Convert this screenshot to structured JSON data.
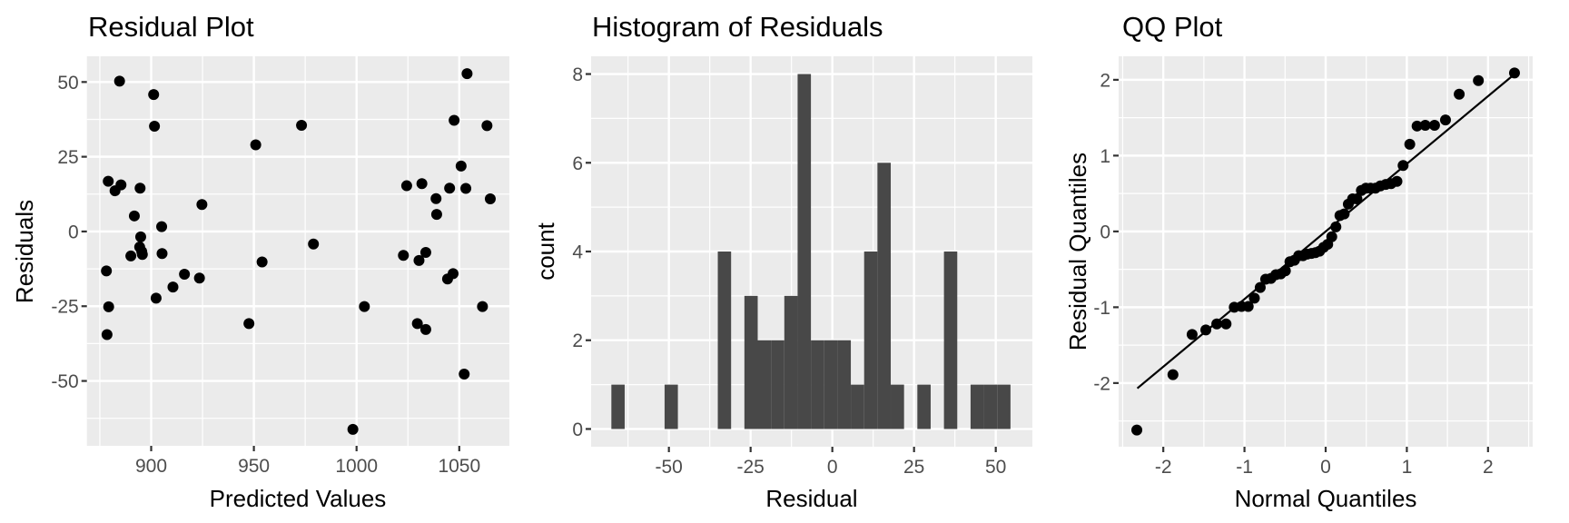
{
  "chart_data": [
    {
      "type": "scatter",
      "title": "Residual Plot",
      "xlabel": "Predicted Values",
      "ylabel": "Residuals",
      "xlim": [
        868.7,
        1074.4
      ],
      "ylim": [
        -71.7,
        58.6
      ],
      "x_ticks": [
        900,
        950,
        1000,
        1050
      ],
      "x_tick_labels": [
        "900",
        "950",
        "1000",
        "1050"
      ],
      "y_ticks": [
        -50,
        -25,
        0,
        25,
        50
      ],
      "y_tick_labels": [
        "-50",
        "-25",
        "0",
        "25",
        "50"
      ],
      "grid": true,
      "points": [
        {
          "x": 884.6,
          "y": 50.3
        },
        {
          "x": 901.2,
          "y": 45.8
        },
        {
          "x": 901.6,
          "y": 35.2
        },
        {
          "x": 950.9,
          "y": 29.0
        },
        {
          "x": 973.2,
          "y": 35.5
        },
        {
          "x": 879.1,
          "y": 16.8
        },
        {
          "x": 885.3,
          "y": 15.6
        },
        {
          "x": 882.4,
          "y": 13.6
        },
        {
          "x": 894.6,
          "y": 14.5
        },
        {
          "x": 891.8,
          "y": 5.2
        },
        {
          "x": 924.7,
          "y": 9.0
        },
        {
          "x": 905.1,
          "y": 1.6
        },
        {
          "x": 894.9,
          "y": -1.8
        },
        {
          "x": 894.4,
          "y": -5.2
        },
        {
          "x": 895.4,
          "y": -6.7
        },
        {
          "x": 895.7,
          "y": -7.7
        },
        {
          "x": 890.1,
          "y": -8.2
        },
        {
          "x": 905.3,
          "y": -7.4
        },
        {
          "x": 878.2,
          "y": -13.2
        },
        {
          "x": 879.3,
          "y": -25.2
        },
        {
          "x": 878.5,
          "y": -34.5
        },
        {
          "x": 902.4,
          "y": -22.3
        },
        {
          "x": 910.6,
          "y": -18.6
        },
        {
          "x": 916.2,
          "y": -14.3
        },
        {
          "x": 923.5,
          "y": -15.6
        },
        {
          "x": 947.6,
          "y": -30.8
        },
        {
          "x": 954.0,
          "y": -10.2
        },
        {
          "x": 979.0,
          "y": -4.2
        },
        {
          "x": 1003.8,
          "y": -25.1
        },
        {
          "x": 998.2,
          "y": -66.2
        },
        {
          "x": 1024.4,
          "y": 15.3
        },
        {
          "x": 1031.8,
          "y": 16.0
        },
        {
          "x": 1038.7,
          "y": 11.0
        },
        {
          "x": 1039.0,
          "y": 5.7
        },
        {
          "x": 1045.3,
          "y": 14.5
        },
        {
          "x": 1047.5,
          "y": 37.2
        },
        {
          "x": 1050.9,
          "y": 21.9
        },
        {
          "x": 1053.2,
          "y": 14.4
        },
        {
          "x": 1053.8,
          "y": 52.8
        },
        {
          "x": 1022.8,
          "y": -8.0
        },
        {
          "x": 1030.4,
          "y": -9.7
        },
        {
          "x": 1033.7,
          "y": -7.0
        },
        {
          "x": 1044.3,
          "y": -15.9
        },
        {
          "x": 1047.0,
          "y": -14.1
        },
        {
          "x": 1029.6,
          "y": -30.8
        },
        {
          "x": 1033.7,
          "y": -32.8
        },
        {
          "x": 1052.4,
          "y": -47.7
        },
        {
          "x": 1063.5,
          "y": 35.4
        },
        {
          "x": 1065.1,
          "y": 10.9
        },
        {
          "x": 1061.3,
          "y": -25.1
        }
      ]
    },
    {
      "type": "bar",
      "subtype": "histogram",
      "title": "Histogram of Residuals",
      "xlabel": "Residual",
      "ylabel": "count",
      "xlim": [
        -73.8,
        61.2
      ],
      "ylim": [
        -0.4,
        8.4
      ],
      "x_ticks": [
        -50,
        -25,
        0,
        25,
        50
      ],
      "x_tick_labels": [
        "-50",
        "-25",
        "0",
        "25",
        "50"
      ],
      "y_ticks": [
        0,
        2,
        4,
        6,
        8
      ],
      "y_tick_labels": [
        "0",
        "2",
        "4",
        "6",
        "8"
      ],
      "grid": true,
      "bin_width": 4.07,
      "first_bin_start": -67.6,
      "counts": [
        1,
        0,
        0,
        0,
        1,
        0,
        0,
        0,
        4,
        0,
        3,
        2,
        2,
        3,
        8,
        2,
        2,
        2,
        1,
        4,
        6,
        1,
        0,
        1,
        0,
        4,
        0,
        1,
        1,
        1
      ],
      "bar_color": "#484848"
    },
    {
      "type": "scatter",
      "subtype": "qq",
      "title": "QQ Plot",
      "xlabel": "Normal Quantiles",
      "ylabel": "Residual Quantiles",
      "xlim": [
        -2.55,
        2.55
      ],
      "ylim": [
        -2.84,
        2.31
      ],
      "x_ticks": [
        -2,
        -1,
        0,
        1,
        2
      ],
      "x_tick_labels": [
        "-2",
        "-1",
        "0",
        "1",
        "2"
      ],
      "y_ticks": [
        -2,
        -1,
        0,
        1,
        2
      ],
      "y_tick_labels": [
        "-2",
        "-1",
        "0",
        "1",
        "2"
      ],
      "grid": true,
      "x": [
        -2.326,
        -1.881,
        -1.645,
        -1.476,
        -1.341,
        -1.227,
        -1.126,
        -1.036,
        -0.954,
        -0.878,
        -0.806,
        -0.739,
        -0.674,
        -0.613,
        -0.553,
        -0.496,
        -0.44,
        -0.385,
        -0.332,
        -0.279,
        -0.228,
        -0.176,
        -0.126,
        -0.075,
        -0.025,
        0.025,
        0.075,
        0.126,
        0.176,
        0.228,
        0.279,
        0.332,
        0.385,
        0.44,
        0.496,
        0.553,
        0.613,
        0.674,
        0.739,
        0.806,
        0.878,
        0.954,
        1.036,
        1.126,
        1.227,
        1.341,
        1.476,
        1.645,
        1.881,
        2.326
      ],
      "y": [
        -2.62,
        -1.89,
        -1.36,
        -1.3,
        -1.22,
        -1.22,
        -1.0,
        -0.99,
        -0.99,
        -0.88,
        -0.74,
        -0.63,
        -0.62,
        -0.57,
        -0.56,
        -0.52,
        -0.4,
        -0.38,
        -0.32,
        -0.32,
        -0.3,
        -0.29,
        -0.28,
        -0.26,
        -0.21,
        -0.17,
        -0.07,
        0.06,
        0.21,
        0.23,
        0.36,
        0.43,
        0.43,
        0.54,
        0.57,
        0.57,
        0.57,
        0.6,
        0.62,
        0.63,
        0.66,
        0.87,
        1.15,
        1.39,
        1.4,
        1.4,
        1.47,
        1.81,
        1.99,
        2.09
      ],
      "reference_line": {
        "x": [
          -2.32,
          2.31
        ],
        "y": [
          -2.07,
          2.06
        ]
      }
    }
  ],
  "colors": {
    "panel_background": "#ebebeb",
    "grid": "#ffffff",
    "points": "#000000",
    "tick_text": "#4d4d4d"
  }
}
